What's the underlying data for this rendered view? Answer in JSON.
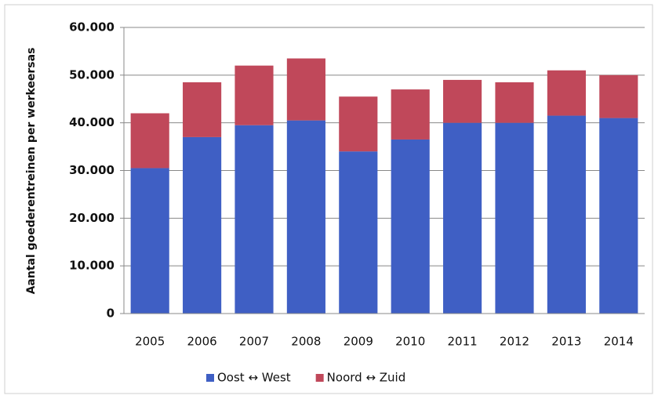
{
  "chart_data": {
    "type": "stacked_bar",
    "y_label": "Aantal goederentreinen per werkeersas",
    "categories": [
      "2005",
      "2006",
      "2007",
      "2008",
      "2009",
      "2010",
      "2011",
      "2012",
      "2013",
      "2014"
    ],
    "series": [
      {
        "name": "Oost ↔ West",
        "color": "#3f5fc4",
        "values": [
          30500,
          37000,
          39500,
          40500,
          34000,
          36500,
          40000,
          40000,
          41500,
          41000
        ]
      },
      {
        "name": "Noord ↔ Zuid",
        "color": "#c0485a",
        "values": [
          11500,
          11500,
          12500,
          13000,
          11500,
          10500,
          9000,
          8500,
          9500,
          9000
        ]
      }
    ],
    "ylim": [
      0,
      60000
    ],
    "yticks": [
      0,
      {
        "value": 10000,
        "label": "10.000"
      },
      {
        "value": 20000,
        "label": "20.000"
      },
      {
        "value": 30000,
        "label": "30.000"
      },
      {
        "value": 40000,
        "label": "40.000"
      },
      {
        "value": 50000,
        "label": "50.000"
      },
      {
        "value": 60000,
        "label": "60.000"
      }
    ],
    "grid": true,
    "legend": "bottom"
  }
}
